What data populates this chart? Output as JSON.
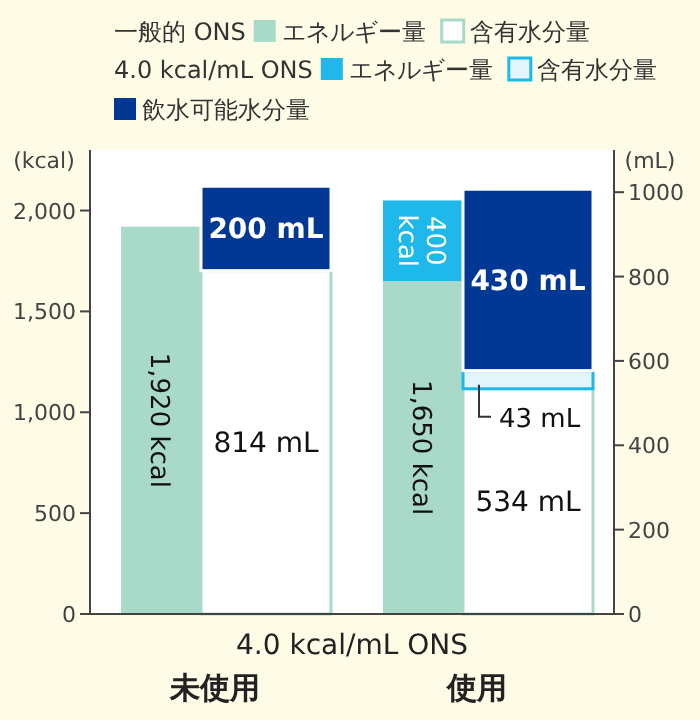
{
  "chart_data": {
    "type": "bar",
    "stacked": true,
    "xlabel": "4.0 kcal/mL ONS",
    "ylabel": "(kcal)",
    "y2label": "(mL)",
    "categories": [
      "未使用",
      "使用"
    ],
    "series": [
      {
        "name": "エネルギー量",
        "color": "#a9dac9",
        "axis": "y",
        "values": [
          1920,
          1650
        ],
        "value_labels": [
          "1,920 kcal",
          "1,650 kcal"
        ]
      },
      {
        "name": "エネルギー量",
        "color": "#1fb8ea",
        "axis": "y",
        "values": [
          null,
          400
        ],
        "value_labels": [
          null,
          "400 kcal"
        ]
      },
      {
        "name": "含有水分量",
        "color": "#ffffff",
        "axis": "y2",
        "values": [
          814,
          534
        ],
        "value_labels": [
          "814 mL",
          "534 mL"
        ]
      },
      {
        "name": "含有水分量",
        "color": "#e3f4fb",
        "axis": "y2",
        "values": [
          null,
          43
        ],
        "value_labels": [
          null,
          "43 mL"
        ]
      },
      {
        "name": "飲水可能水分量",
        "color": "#003893",
        "axis": "y2",
        "values": [
          200,
          430
        ],
        "value_labels": [
          "200 mL",
          "430 mL"
        ]
      }
    ],
    "annotations": [
      "一般的 ONS",
      "4.0 kcal/mL ONS"
    ],
    "ylim": [
      0,
      2300
    ],
    "yticks": [
      0,
      {
        "value": 500,
        "label": "500"
      },
      {
        "value": 1000,
        "label": "1,000"
      },
      {
        "value": 1500,
        "label": "1,500"
      },
      {
        "value": 2000,
        "label": "2,000"
      }
    ],
    "y2lim": [
      0,
      1100
    ],
    "y2ticks": [
      0,
      200,
      400,
      600,
      800,
      1000
    ],
    "legend": "top",
    "grid": false
  }
}
